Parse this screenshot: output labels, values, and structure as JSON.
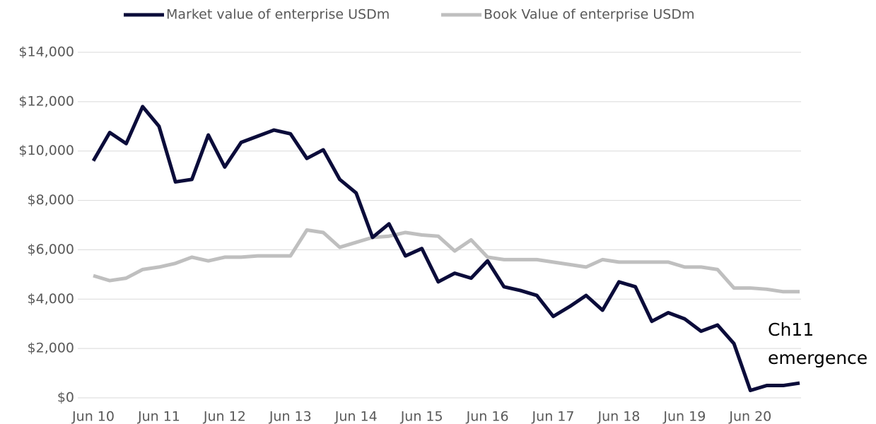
{
  "chart_data": {
    "type": "line",
    "categories": [
      "Jun 10",
      null,
      null,
      null,
      "Jun 11",
      null,
      null,
      null,
      "Jun 12",
      null,
      null,
      null,
      "Jun 13",
      null,
      null,
      null,
      "Jun 14",
      null,
      null,
      null,
      "Jun 15",
      null,
      null,
      null,
      "Jun 16",
      null,
      null,
      null,
      "Jun 17",
      null,
      null,
      null,
      "Jun 18",
      null,
      null,
      null,
      "Jun 19",
      null,
      null,
      null,
      "Jun 20",
      null,
      null,
      null
    ],
    "series": [
      {
        "name": "Market value of enterprise USDm",
        "color": "#0b0c3a",
        "values": [
          9600,
          10750,
          10300,
          11800,
          11000,
          8750,
          8850,
          10650,
          9350,
          10350,
          10600,
          10850,
          10700,
          9700,
          10050,
          8850,
          8300,
          6500,
          7050,
          5750,
          6050,
          4700,
          5050,
          4850,
          5550,
          4500,
          4350,
          4150,
          3300,
          3700,
          4150,
          3550,
          4700,
          4500,
          3100,
          3450,
          3200,
          2700,
          2950,
          2200,
          300,
          500,
          500,
          600
        ]
      },
      {
        "name": "Book Value of enterprise USDm",
        "color": "#bfbfbf",
        "values": [
          4950,
          4750,
          4850,
          5200,
          5300,
          5450,
          5700,
          5550,
          5700,
          5700,
          5750,
          5750,
          5750,
          6800,
          6700,
          6100,
          6300,
          6500,
          6550,
          6700,
          6600,
          6550,
          5950,
          6400,
          5700,
          5600,
          5600,
          5600,
          5500,
          5400,
          5300,
          5600,
          5500,
          5500,
          5500,
          5500,
          5300,
          5300,
          5200,
          4450,
          4450,
          4400,
          4300,
          4300
        ]
      }
    ],
    "ylim": [
      0,
      14000
    ],
    "yticks": [
      {
        "value": 0,
        "label": "$0"
      },
      {
        "value": 2000,
        "label": "$2,000"
      },
      {
        "value": 4000,
        "label": "$4,000"
      },
      {
        "value": 6000,
        "label": "$6,000"
      },
      {
        "value": 8000,
        "label": "$8,000"
      },
      {
        "value": 10000,
        "label": "$10,000"
      },
      {
        "value": 12000,
        "label": "$12,000"
      },
      {
        "value": 14000,
        "label": "$14,000"
      }
    ],
    "grid": true,
    "legend": "top",
    "annotation": [
      "Ch11",
      "emergence"
    ]
  }
}
